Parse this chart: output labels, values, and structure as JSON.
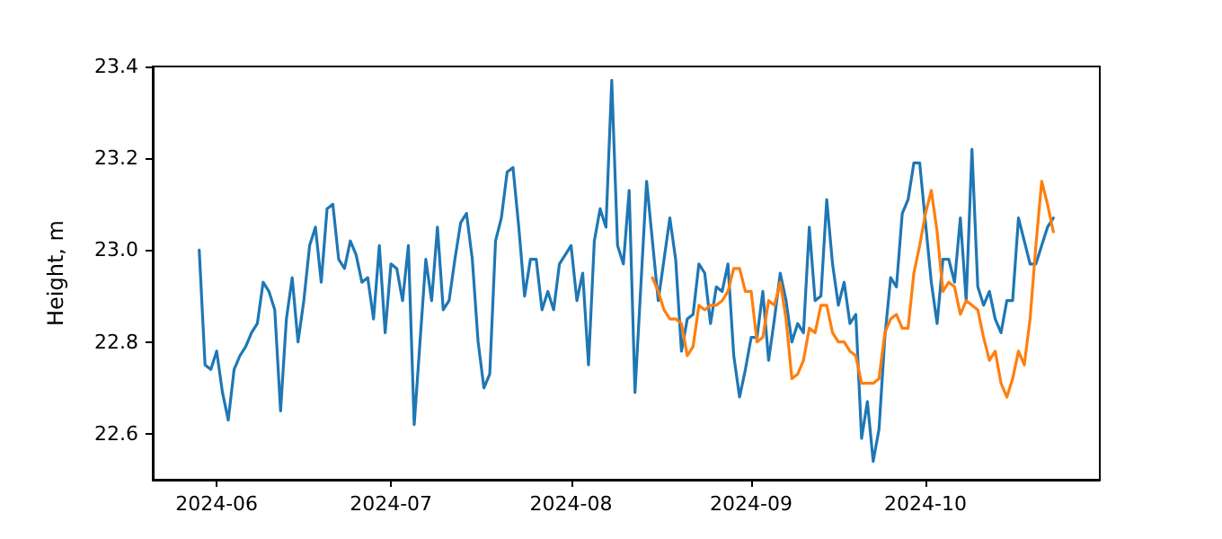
{
  "chart_data": {
    "type": "line",
    "ylabel": "Height, m",
    "xlim": [
      "2024-05-21",
      "2024-10-31"
    ],
    "xticks": [
      "2024-06",
      "2024-07",
      "2024-08",
      "2024-09",
      "2024-10"
    ],
    "ylim": [
      22.5,
      23.4
    ],
    "yticks": [
      22.6,
      22.8,
      {
        "value": 23,
        "label": "23.0"
      },
      23.2,
      23.4
    ],
    "marker": "none",
    "line_style": "solid",
    "series": [
      {
        "color": "#1f77b4",
        "x": [
          "2024-05-29",
          "2024-05-30",
          "2024-05-31",
          "2024-06-01",
          "2024-06-02",
          "2024-06-03",
          "2024-06-04",
          "2024-06-05",
          "2024-06-06",
          "2024-06-07",
          "2024-06-08",
          "2024-06-09",
          "2024-06-10",
          "2024-06-11",
          "2024-06-12",
          "2024-06-13",
          "2024-06-14",
          "2024-06-15",
          "2024-06-16",
          "2024-06-17",
          "2024-06-18",
          "2024-06-19",
          "2024-06-20",
          "2024-06-21",
          "2024-06-22",
          "2024-06-23",
          "2024-06-24",
          "2024-06-25",
          "2024-06-26",
          "2024-06-27",
          "2024-06-28",
          "2024-06-29",
          "2024-06-30",
          "2024-07-01",
          "2024-07-02",
          "2024-07-03",
          "2024-07-04",
          "2024-07-05",
          "2024-07-06",
          "2024-07-07",
          "2024-07-08",
          "2024-07-09",
          "2024-07-10",
          "2024-07-11",
          "2024-07-12",
          "2024-07-13",
          "2024-07-14",
          "2024-07-15",
          "2024-07-16",
          "2024-07-17",
          "2024-07-18",
          "2024-07-19",
          "2024-07-20",
          "2024-07-21",
          "2024-07-22",
          "2024-07-23",
          "2024-07-24",
          "2024-07-25",
          "2024-07-26",
          "2024-07-27",
          "2024-07-28",
          "2024-07-29",
          "2024-07-30",
          "2024-07-31",
          "2024-08-01",
          "2024-08-02",
          "2024-08-03",
          "2024-08-04",
          "2024-08-05",
          "2024-08-06",
          "2024-08-07",
          "2024-08-08",
          "2024-08-09",
          "2024-08-10",
          "2024-08-11",
          "2024-08-12",
          "2024-08-14",
          "2024-08-15",
          "2024-08-16",
          "2024-08-17",
          "2024-08-18",
          "2024-08-19",
          "2024-08-20",
          "2024-08-21",
          "2024-08-22",
          "2024-08-23",
          "2024-08-24",
          "2024-08-25",
          "2024-08-26",
          "2024-08-27",
          "2024-08-28",
          "2024-08-29",
          "2024-08-30",
          "2024-08-31",
          "2024-09-01",
          "2024-09-02",
          "2024-09-03",
          "2024-09-04",
          "2024-09-05",
          "2024-09-06",
          "2024-09-07",
          "2024-09-08",
          "2024-09-09",
          "2024-09-10",
          "2024-09-11",
          "2024-09-12",
          "2024-09-13",
          "2024-09-14",
          "2024-09-15",
          "2024-09-16",
          "2024-09-17",
          "2024-09-18",
          "2024-09-19",
          "2024-09-20",
          "2024-09-21",
          "2024-09-22",
          "2024-09-23",
          "2024-09-24",
          "2024-09-25",
          "2024-09-26",
          "2024-09-27",
          "2024-09-28",
          "2024-09-29",
          "2024-09-30",
          "2024-10-01",
          "2024-10-02",
          "2024-10-03",
          "2024-10-04",
          "2024-10-05",
          "2024-10-06",
          "2024-10-07",
          "2024-10-08",
          "2024-10-09",
          "2024-10-10",
          "2024-10-11",
          "2024-10-12",
          "2024-10-13",
          "2024-10-14",
          "2024-10-15",
          "2024-10-16",
          "2024-10-17",
          "2024-10-18",
          "2024-10-19",
          "2024-10-20",
          "2024-10-21",
          "2024-10-22",
          "2024-10-23"
        ],
        "values": [
          23.0,
          22.75,
          22.74,
          22.78,
          22.69,
          22.63,
          22.74,
          22.77,
          22.79,
          22.82,
          22.84,
          22.93,
          22.91,
          22.87,
          22.65,
          22.85,
          22.94,
          22.8,
          22.89,
          23.01,
          23.05,
          22.93,
          23.09,
          23.1,
          22.98,
          22.96,
          23.02,
          22.99,
          22.93,
          22.94,
          22.85,
          23.01,
          22.82,
          22.97,
          22.96,
          22.89,
          23.01,
          22.62,
          22.8,
          22.98,
          22.89,
          23.05,
          22.87,
          22.89,
          22.98,
          23.06,
          23.08,
          22.98,
          22.8,
          22.7,
          22.73,
          23.02,
          23.07,
          23.17,
          23.18,
          23.05,
          22.9,
          22.98,
          22.98,
          22.87,
          22.91,
          22.87,
          22.97,
          22.99,
          23.01,
          22.89,
          22.95,
          22.75,
          23.02,
          23.09,
          23.05,
          23.37,
          23.01,
          22.97,
          23.13,
          22.69,
          23.15,
          23.02,
          22.89,
          22.98,
          23.07,
          22.98,
          22.78,
          22.85,
          22.86,
          22.97,
          22.95,
          22.84,
          22.92,
          22.91,
          22.97,
          22.77,
          22.68,
          22.74,
          22.81,
          22.81,
          22.91,
          22.76,
          22.85,
          22.95,
          22.89,
          22.8,
          22.84,
          22.82,
          23.05,
          22.89,
          22.9,
          23.11,
          22.97,
          22.88,
          22.93,
          22.84,
          22.86,
          22.59,
          22.67,
          22.54,
          22.61,
          22.81,
          22.94,
          22.92,
          23.08,
          23.11,
          23.19,
          23.19,
          23.06,
          22.93,
          22.84,
          22.98,
          22.98,
          22.93,
          23.07,
          22.89,
          23.22,
          22.92,
          22.88,
          22.91,
          22.85,
          22.82,
          22.89,
          22.89,
          23.07,
          23.02,
          22.97,
          22.97,
          23.01,
          23.05,
          23.07
        ]
      },
      {
        "color": "#ff7f0e",
        "x": [
          "2024-08-15",
          "2024-08-16",
          "2024-08-17",
          "2024-08-18",
          "2024-08-19",
          "2024-08-20",
          "2024-08-21",
          "2024-08-22",
          "2024-08-23",
          "2024-08-24",
          "2024-08-25",
          "2024-08-26",
          "2024-08-27",
          "2024-08-28",
          "2024-08-29",
          "2024-08-30",
          "2024-08-31",
          "2024-09-01",
          "2024-09-02",
          "2024-09-03",
          "2024-09-04",
          "2024-09-05",
          "2024-09-06",
          "2024-09-07",
          "2024-09-08",
          "2024-09-09",
          "2024-09-10",
          "2024-09-11",
          "2024-09-12",
          "2024-09-13",
          "2024-09-14",
          "2024-09-15",
          "2024-09-16",
          "2024-09-17",
          "2024-09-18",
          "2024-09-19",
          "2024-09-20",
          "2024-09-21",
          "2024-09-22",
          "2024-09-23",
          "2024-09-24",
          "2024-09-25",
          "2024-09-26",
          "2024-09-27",
          "2024-09-28",
          "2024-09-29",
          "2024-09-30",
          "2024-10-01",
          "2024-10-02",
          "2024-10-03",
          "2024-10-04",
          "2024-10-05",
          "2024-10-06",
          "2024-10-07",
          "2024-10-08",
          "2024-10-09",
          "2024-10-10",
          "2024-10-11",
          "2024-10-12",
          "2024-10-13",
          "2024-10-14",
          "2024-10-15",
          "2024-10-16",
          "2024-10-17",
          "2024-10-18",
          "2024-10-19",
          "2024-10-20",
          "2024-10-21",
          "2024-10-22",
          "2024-10-23"
        ],
        "values": [
          22.94,
          22.91,
          22.87,
          22.85,
          22.85,
          22.84,
          22.77,
          22.79,
          22.88,
          22.87,
          22.88,
          22.88,
          22.89,
          22.91,
          22.96,
          22.96,
          22.91,
          22.91,
          22.8,
          22.81,
          22.89,
          22.88,
          22.93,
          22.85,
          22.72,
          22.73,
          22.76,
          22.83,
          22.82,
          22.88,
          22.88,
          22.82,
          22.8,
          22.8,
          22.78,
          22.77,
          22.71,
          22.71,
          22.71,
          22.72,
          22.82,
          22.85,
          22.86,
          22.83,
          22.83,
          22.95,
          23.01,
          23.08,
          23.13,
          23.04,
          22.91,
          22.93,
          22.92,
          22.86,
          22.89,
          22.88,
          22.87,
          22.81,
          22.76,
          22.78,
          22.71,
          22.68,
          22.72,
          22.78,
          22.75,
          22.85,
          23.01,
          23.15,
          23.1,
          23.04
        ]
      }
    ]
  }
}
